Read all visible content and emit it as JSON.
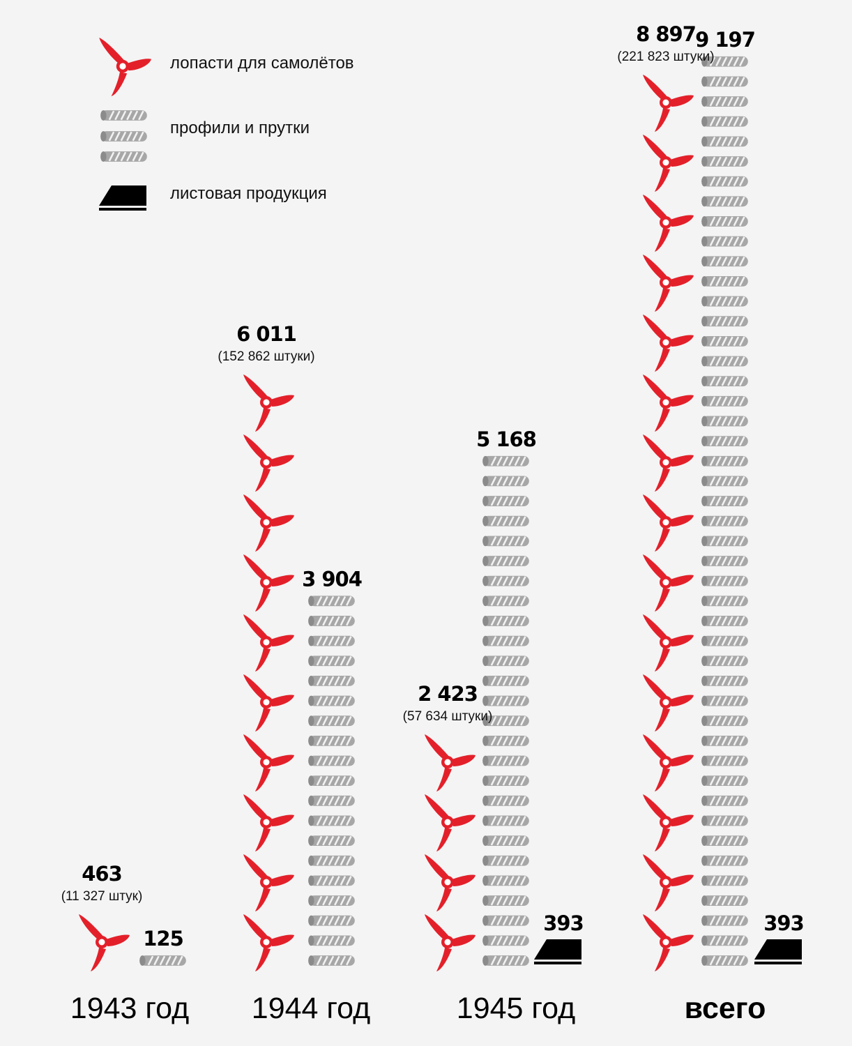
{
  "colors": {
    "blade": "#e3202a",
    "profile_body": "#a7a7a7",
    "profile_stripe": "#f2f2f2",
    "profile_end": "#8b8b8b",
    "sheet": "#000000",
    "background": "#f4f4f4"
  },
  "legend": {
    "blades_label": "лопасти для самолётов",
    "profiles_label": "профили и прутки",
    "sheet_label": "листовая продукция",
    "blades_icon": "propeller-icon",
    "profiles_icon": "profile-bar-icon",
    "sheet_icon": "sheet-icon"
  },
  "chart_data": {
    "type": "bar",
    "categories": [
      "1943 год",
      "1944 год",
      "1945 год",
      "всего"
    ],
    "legend_placement": "top-left",
    "grid": false,
    "series": [
      {
        "name": "лопасти для самолётов",
        "values": [
          463,
          6011,
          2423,
          8897
        ],
        "labels": [
          "463",
          "6 011",
          "2 423",
          "8 897"
        ],
        "sub_labels": [
          "(11 327 штук)",
          "(152 862 штуки)",
          "(57 634 штуки)",
          "(221 823 штуки)"
        ],
        "icon_count": [
          1,
          10,
          4,
          15
        ]
      },
      {
        "name": "профили и прутки",
        "values": [
          125,
          3904,
          5168,
          9197
        ],
        "labels": [
          "125",
          "3 904",
          "5 168",
          "9 197"
        ],
        "icon_count": [
          1,
          19,
          26,
          46
        ]
      },
      {
        "name": "листовая продукция",
        "values": [
          0,
          0,
          393,
          393
        ],
        "labels": [
          "",
          "",
          "393",
          "393"
        ],
        "icon_count": [
          0,
          0,
          1,
          1
        ]
      }
    ]
  }
}
